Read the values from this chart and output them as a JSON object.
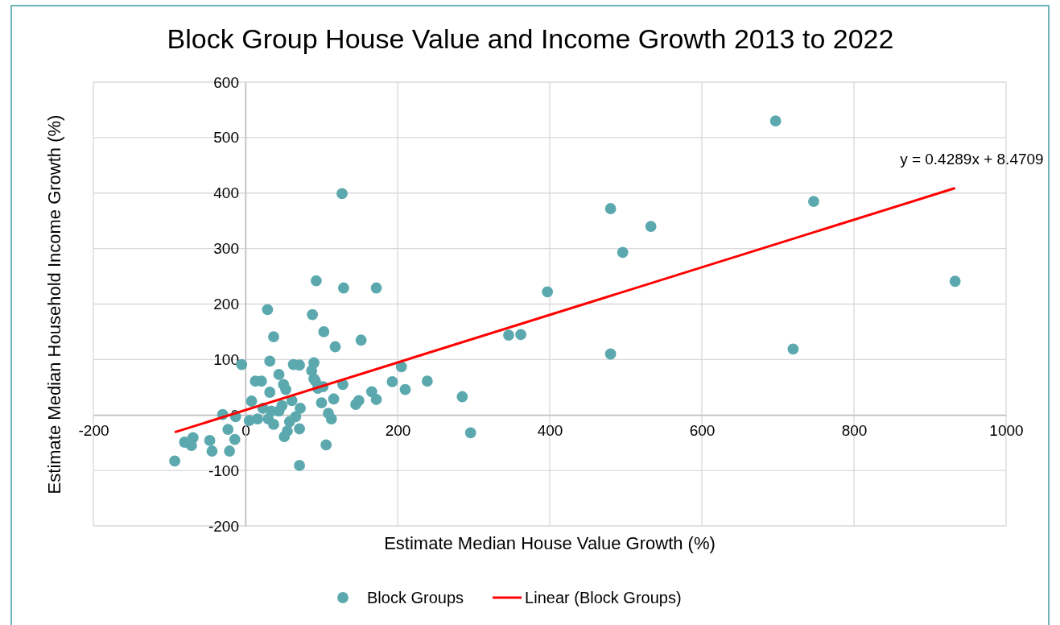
{
  "chart_data": {
    "type": "scatter",
    "title": "Block Group House Value and Income Growth 2013 to 2022",
    "xlabel": "Estimate Median House Value Growth (%)",
    "ylabel": "Estimate Median Household Income Growth (%)",
    "xlim": [
      -200,
      1000
    ],
    "xticks": [
      -200,
      0,
      200,
      400,
      600,
      800,
      1000
    ],
    "ylim": [
      -200,
      600
    ],
    "yticks": [
      -200,
      -100,
      0,
      100,
      200,
      300,
      400,
      500,
      600
    ],
    "grid": true,
    "legend": "bottom",
    "marker": "circle",
    "annotations": [
      {
        "text": "y = 0.4289x + 8.4709",
        "x": 933,
        "y": 409
      }
    ],
    "series": [
      {
        "name": "Block Groups",
        "color": "#5ba9ae",
        "x": [
          -93,
          -80,
          -69,
          -71,
          -47,
          -44,
          -23,
          -21,
          -14,
          -5,
          -30,
          -13,
          8,
          5,
          13,
          21,
          29,
          37,
          32,
          32,
          44,
          50,
          53,
          63,
          71,
          90,
          88,
          103,
          118,
          90,
          95,
          100,
          116,
          109,
          113,
          106,
          71,
          51,
          55,
          58,
          66,
          71,
          72,
          44,
          30,
          16,
          23,
          34,
          48,
          61,
          37,
          87,
          92,
          102,
          128,
          145,
          149,
          166,
          172,
          193,
          205,
          210,
          239,
          285,
          296,
          127,
          93,
          129,
          172,
          152,
          346,
          362,
          397,
          480,
          480,
          496,
          533,
          697,
          747,
          720,
          933
        ],
        "values": [
          -83,
          -49,
          -41,
          -55,
          -46,
          -65,
          -26,
          -65,
          -44,
          91,
          1,
          -3,
          25,
          -10,
          61,
          61,
          190,
          141,
          97,
          41,
          73,
          55,
          46,
          91,
          90,
          94,
          181,
          150,
          123,
          65,
          48,
          22,
          29,
          3,
          -7,
          -54,
          -91,
          -39,
          -29,
          -12,
          -3,
          -25,
          12,
          7,
          -7,
          -7,
          12,
          7,
          17,
          26,
          -17,
          80,
          61,
          51,
          55,
          19,
          26,
          42,
          28,
          60,
          87,
          46,
          61,
          33,
          -32,
          399,
          242,
          229,
          229,
          135,
          144,
          145,
          222,
          372,
          110,
          293,
          340,
          530,
          385,
          119,
          241
        ]
      },
      {
        "name": "Linear (Block Groups)",
        "type": "line",
        "color": "#ff0000",
        "line_style": "solid",
        "marker": "none",
        "x": [
          -93,
          933
        ],
        "values": [
          -31,
          409
        ]
      }
    ]
  }
}
